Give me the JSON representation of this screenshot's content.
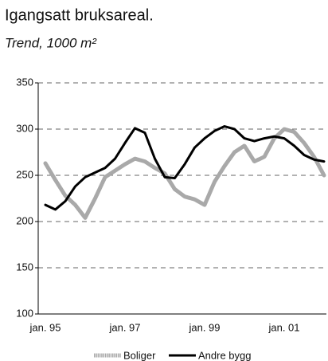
{
  "chart_data": {
    "type": "line",
    "title": "Igangsatt bruksareal.",
    "subtitle": "Trend, 1000 m²",
    "categories": [
      "jan. 95",
      null,
      null,
      null,
      null,
      null,
      null,
      null,
      "jan. 97",
      null,
      null,
      null,
      null,
      null,
      null,
      null,
      "jan. 99",
      null,
      null,
      null,
      null,
      null,
      null,
      null,
      "jan. 01",
      null,
      null,
      null,
      null
    ],
    "series": [
      {
        "name": "Boliger",
        "color": "#a9a9a9",
        "values": [
          263,
          245,
          228,
          218,
          204,
          225,
          248,
          255,
          262,
          268,
          265,
          258,
          252,
          235,
          227,
          224,
          218,
          243,
          260,
          275,
          282,
          265,
          270,
          290,
          300,
          297,
          285,
          270,
          250
        ]
      },
      {
        "name": "Andre bygg",
        "color": "#000000",
        "values": [
          218,
          213,
          222,
          238,
          248,
          253,
          258,
          268,
          285,
          301,
          296,
          268,
          248,
          247,
          262,
          280,
          290,
          298,
          303,
          300,
          290,
          287,
          290,
          292,
          290,
          282,
          272,
          267,
          265
        ]
      }
    ],
    "ylim": [
      100,
      350
    ],
    "yticks": [
      100,
      150,
      200,
      250,
      300,
      350
    ],
    "grid": true,
    "legend": "bottom"
  }
}
